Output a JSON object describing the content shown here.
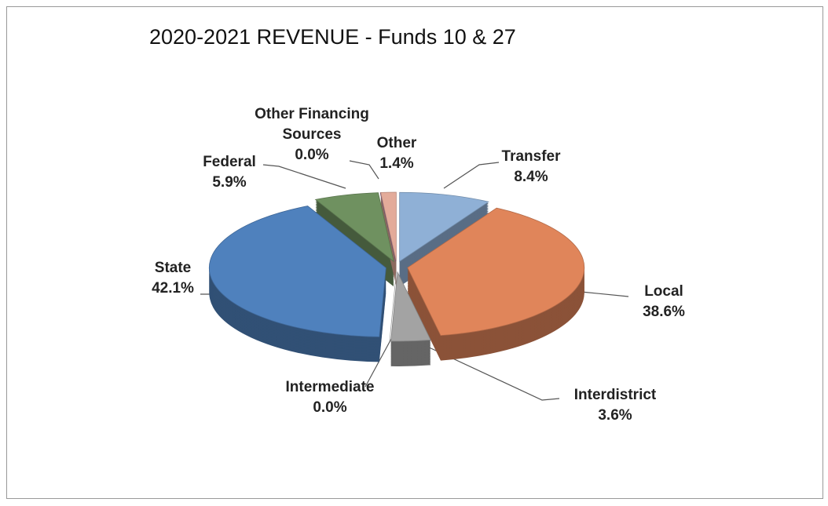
{
  "chart_data": {
    "type": "pie",
    "title": "2020-2021 REVENUE - Funds 10 & 27",
    "categories": [
      "Transfer",
      "Local",
      "Interdistrict",
      "Intermediate",
      "State",
      "Federal",
      "Other Financing Sources",
      "Other"
    ],
    "values": [
      8.4,
      38.6,
      3.6,
      0.0,
      42.1,
      5.9,
      0.0,
      1.4
    ],
    "value_labels": [
      "8.4%",
      "38.6%",
      "3.6%",
      "0.0%",
      "42.1%",
      "5.9%",
      "0.0%",
      "1.4%"
    ],
    "colors": [
      "#8fb0d6",
      "#e0855a",
      "#a3a3a3",
      "#c4c4c4",
      "#4f81bd",
      "#6f9160",
      "#7a5a8a",
      "#e3ab9a"
    ]
  }
}
